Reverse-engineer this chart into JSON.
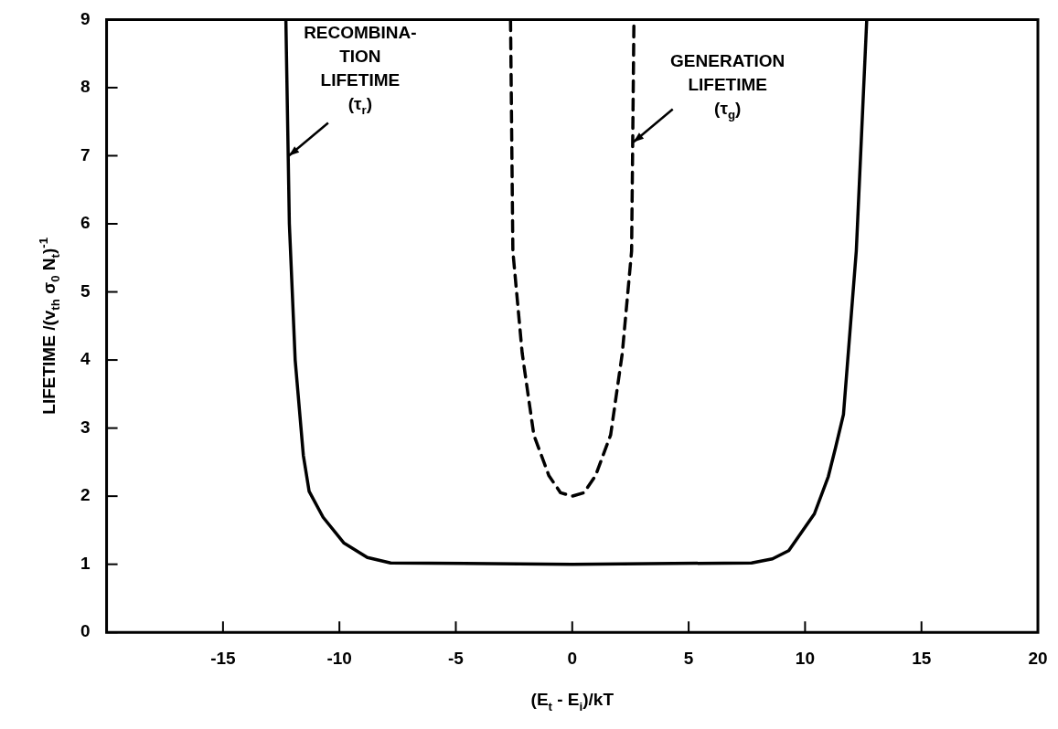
{
  "chart_data": {
    "type": "line",
    "xlabel": "(E$_{t}$ - E$_{i}$)/kT",
    "ylabel": "LIFETIME /(v$_{th}$ σ$_{0}$ N$_{t}$)$^{-1}$",
    "xlim": [
      -20,
      20
    ],
    "xticks": [
      -15,
      -10,
      -5,
      0,
      5,
      10,
      15,
      20
    ],
    "ylim": [
      0,
      9
    ],
    "yticks": [
      0,
      1,
      2,
      3,
      4,
      5,
      6,
      7,
      8,
      9
    ],
    "grid": false,
    "legend": false,
    "marker": "none",
    "series": [
      {
        "color": "#000000",
        "line_style": "solid",
        "x": [
          -12.3,
          -12.15,
          -11.9,
          -11.55,
          -11.3,
          -10.7,
          -9.8,
          -8.8,
          -7.8,
          0,
          7.7,
          8.6,
          9.3,
          10.4,
          11.0,
          11.3,
          11.65,
          12.2,
          12.65
        ],
        "values": [
          9,
          6,
          4,
          2.6,
          2.07,
          1.69,
          1.31,
          1.1,
          1.02,
          1,
          1.02,
          1.08,
          1.2,
          1.74,
          2.29,
          2.7,
          3.2,
          5.6,
          9
        ]
      },
      {
        "color": "#000000",
        "line_style": "dashed",
        "x": [
          -2.65,
          -2.55,
          -2.15,
          -1.65,
          -1.0,
          -0.5,
          0,
          0.5,
          1.0,
          1.65,
          2.15,
          2.55,
          2.65
        ],
        "values": [
          9,
          5.6,
          4.1,
          2.9,
          2.3,
          2.05,
          2,
          2.05,
          2.3,
          2.9,
          4.1,
          5.6,
          9
        ]
      }
    ],
    "annotations": [
      {
        "text": "RECOMBINA-\nTION\nLIFETIME\n(τ$_{r}$)",
        "x": -12.25,
        "y": 7
      },
      {
        "text": "GENERATION\nLIFETIME\n(τ$_{g}$)",
        "x": 2.55,
        "y": 7.2
      }
    ]
  }
}
